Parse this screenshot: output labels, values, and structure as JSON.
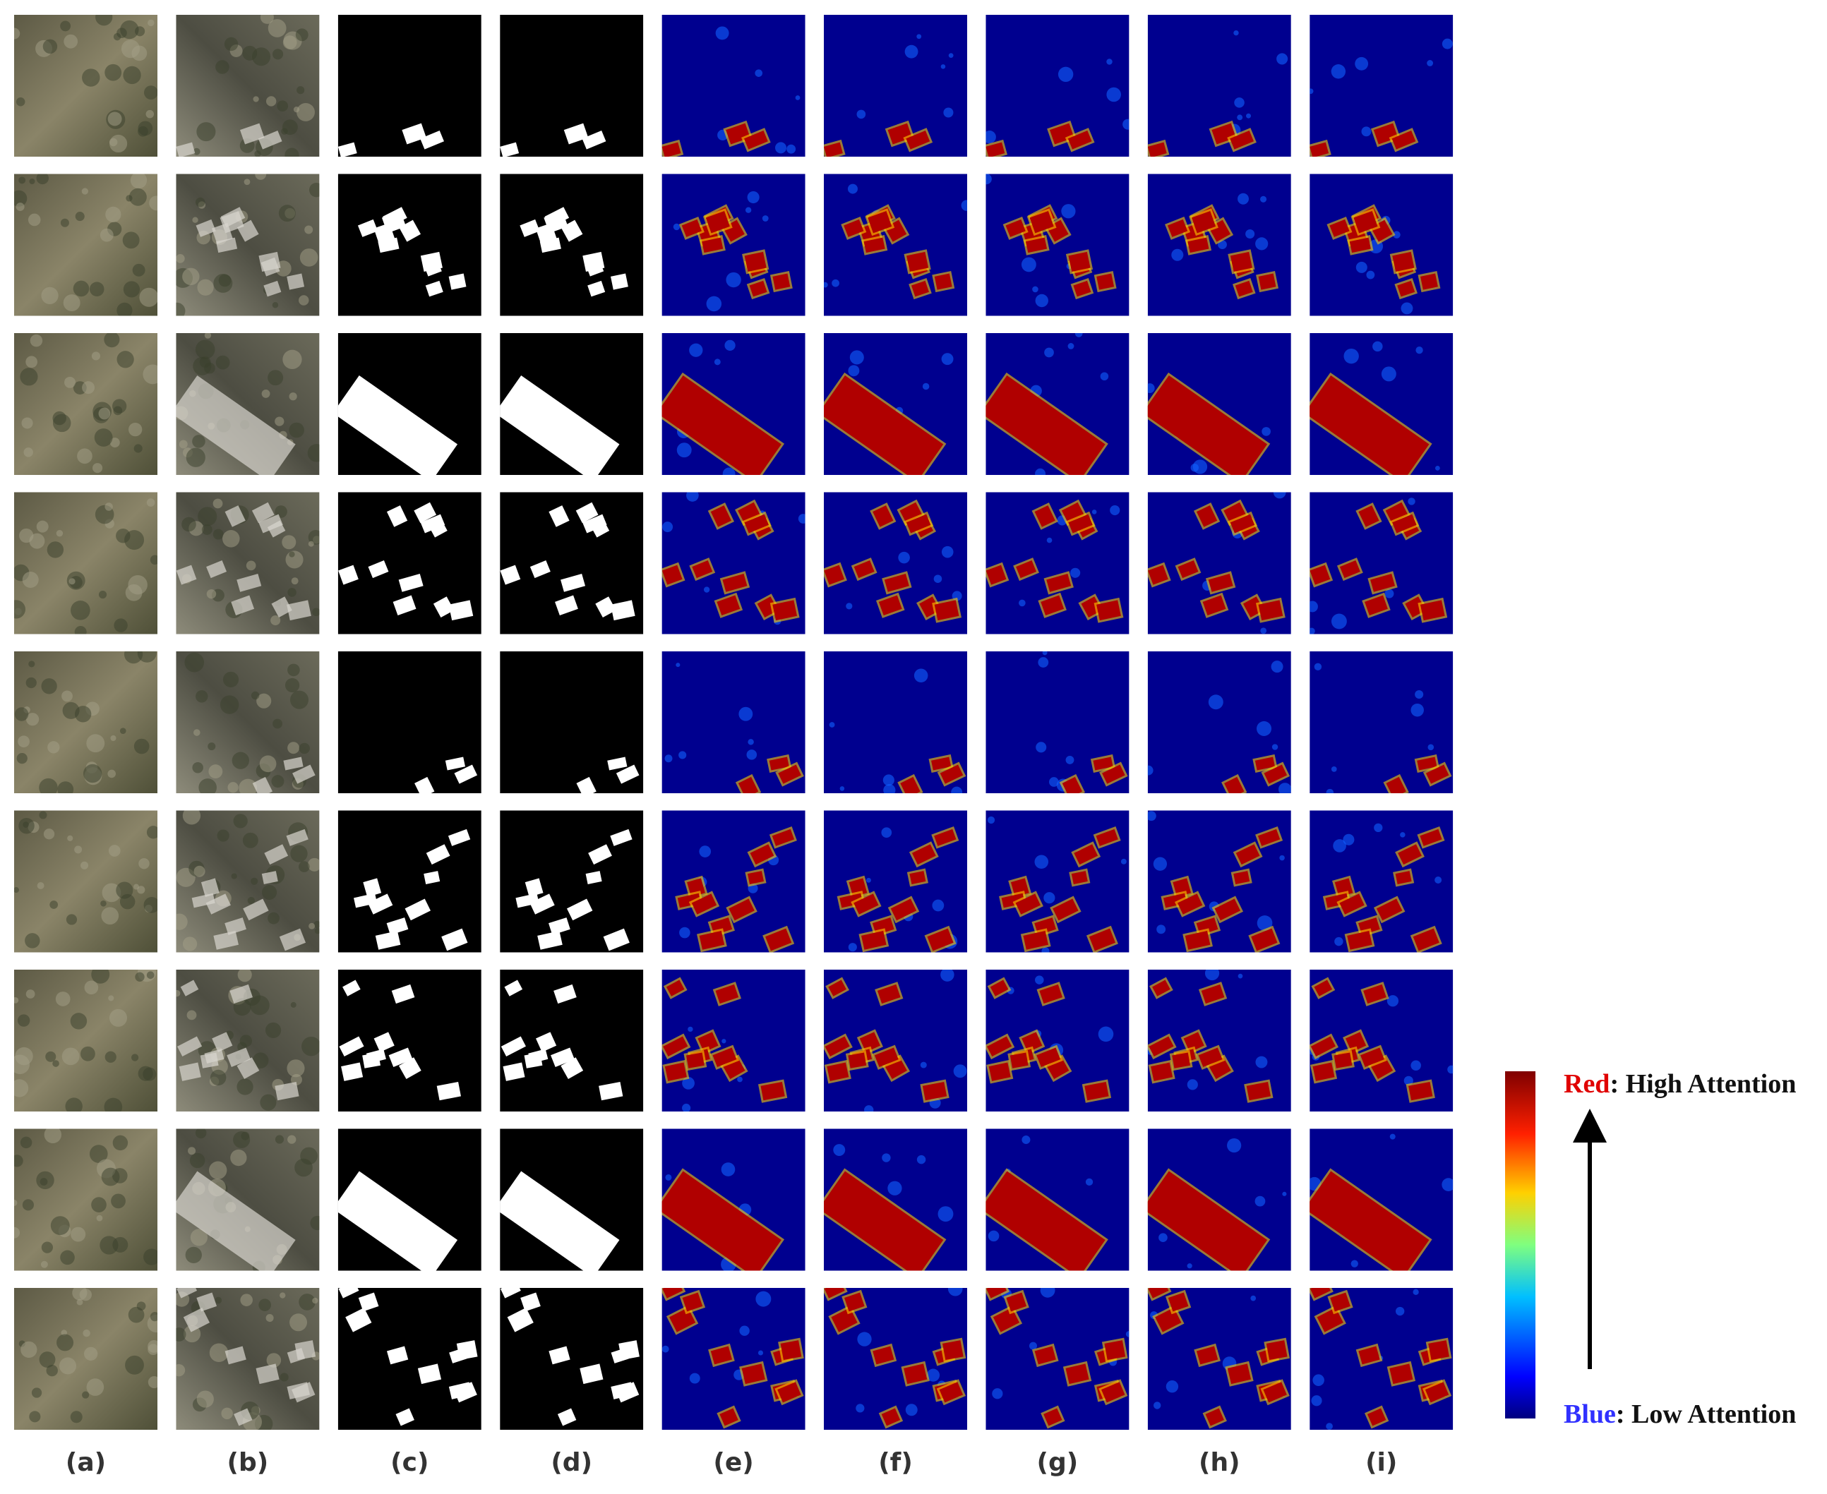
{
  "columns": [
    "(a)",
    "(b)",
    "(c)",
    "(d)",
    "(e)",
    "(f)",
    "(g)",
    "(h)",
    "(i)"
  ],
  "legend": {
    "high": {
      "word": "Red",
      "text": ": High Attention"
    },
    "low": {
      "word": "Blue",
      "text": ": Low Attention"
    }
  }
}
